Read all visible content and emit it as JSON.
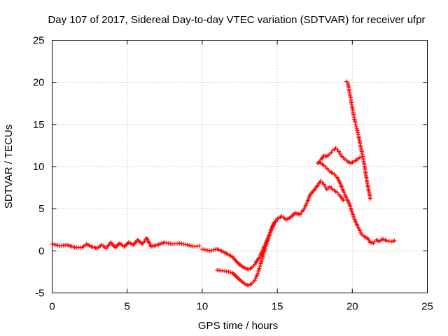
{
  "chart_data": {
    "type": "scatter",
    "title": "Day 107 of 2017, Sidereal Day-to-day VTEC variation (SDTVAR) for receiver ufpr",
    "xlabel": "GPS time / hours",
    "ylabel": "SDTVAR / TECUs",
    "xlim": [
      0,
      25
    ],
    "ylim": [
      -5,
      25
    ],
    "xticks": [
      "0",
      "5",
      "10",
      "15",
      "20",
      "25"
    ],
    "yticks": [
      "-5",
      "0",
      "5",
      "10",
      "15",
      "20",
      "25"
    ],
    "grid": true,
    "legend": "none",
    "marker": "plus",
    "color": "#ff0000",
    "series": [
      {
        "x": [
          0.0,
          0.5,
          1.0,
          1.5,
          2.0,
          2.3,
          2.6,
          3.0,
          3.3,
          3.6,
          3.9,
          4.2,
          4.5,
          4.8,
          5.1,
          5.4,
          5.7,
          6.0,
          6.3,
          6.6,
          7.0,
          7.5,
          8.0,
          8.5,
          9.0,
          9.5,
          9.8
        ],
        "y": [
          0.8,
          0.6,
          0.7,
          0.4,
          0.4,
          0.8,
          0.5,
          0.3,
          0.7,
          0.3,
          1.0,
          0.4,
          0.9,
          0.5,
          1.0,
          0.7,
          1.3,
          0.8,
          1.5,
          0.5,
          0.7,
          1.0,
          0.8,
          0.9,
          0.7,
          0.5,
          0.6
        ]
      },
      {
        "x": [
          10.0,
          10.5,
          11.0,
          11.5,
          12.0,
          12.3,
          12.6,
          12.9,
          13.1,
          13.3,
          13.5,
          13.8,
          14.0,
          14.2,
          14.4,
          14.6,
          14.8,
          15.0
        ],
        "y": [
          0.2,
          0.0,
          0.2,
          -0.2,
          -0.7,
          -1.3,
          -1.8,
          -2.1,
          -2.2,
          -2.0,
          -1.6,
          -0.8,
          0.0,
          0.8,
          1.6,
          2.6,
          3.4,
          3.8
        ]
      },
      {
        "x": [
          11.0,
          11.5,
          12.0,
          12.3,
          12.6,
          12.9,
          13.1,
          13.3,
          13.5,
          13.7,
          13.9,
          14.1,
          14.3,
          14.5,
          14.7,
          14.9
        ],
        "y": [
          -2.3,
          -2.4,
          -2.6,
          -3.1,
          -3.6,
          -4.0,
          -4.1,
          -3.9,
          -3.5,
          -2.7,
          -1.5,
          -0.3,
          0.9,
          2.0,
          2.9,
          3.5
        ]
      },
      {
        "x": [
          15.0,
          15.3,
          15.6,
          15.9,
          16.2,
          16.5,
          16.8,
          17.0,
          17.2,
          17.5,
          17.7,
          17.9,
          18.1,
          18.3,
          18.5,
          18.7,
          19.0,
          19.2,
          19.4
        ],
        "y": [
          3.8,
          4.1,
          3.7,
          4.0,
          4.5,
          4.3,
          5.0,
          5.8,
          6.7,
          7.3,
          7.8,
          8.3,
          7.9,
          7.3,
          7.6,
          7.3,
          6.9,
          6.5,
          6.0
        ]
      },
      {
        "x": [
          17.8,
          18.0,
          18.2,
          18.4,
          18.6,
          18.8,
          19.0,
          19.2,
          19.4,
          19.6,
          19.8,
          20.0,
          20.2,
          20.4,
          20.6,
          20.8,
          21.0,
          21.2,
          21.4,
          21.6,
          21.8,
          22.0,
          22.3,
          22.6,
          22.8
        ],
        "y": [
          10.5,
          10.3,
          10.0,
          9.6,
          9.3,
          9.1,
          8.7,
          8.0,
          7.1,
          6.3,
          5.6,
          4.5,
          3.5,
          2.8,
          2.0,
          1.7,
          1.5,
          1.0,
          0.9,
          1.3,
          1.1,
          1.4,
          1.2,
          1.1,
          1.2
        ]
      },
      {
        "x": [
          17.7,
          17.9,
          18.1,
          18.3,
          18.5,
          18.7,
          18.9,
          19.1,
          19.3,
          19.5,
          19.7,
          19.9,
          20.1,
          20.3,
          20.5
        ],
        "y": [
          10.4,
          10.8,
          11.3,
          11.2,
          11.5,
          11.9,
          12.2,
          11.8,
          11.2,
          10.9,
          10.6,
          10.4,
          10.6,
          10.8,
          11.1
        ]
      },
      {
        "x": [
          19.6,
          19.7,
          19.8,
          19.9,
          20.0,
          20.1,
          20.2,
          20.3,
          20.4,
          20.5,
          20.6,
          20.7,
          20.8,
          20.9,
          21.0,
          21.1,
          21.2
        ],
        "y": [
          20.1,
          19.9,
          19.0,
          18.0,
          17.0,
          16.0,
          15.2,
          14.5,
          13.8,
          12.9,
          12.0,
          11.2,
          10.2,
          9.1,
          8.0,
          7.1,
          6.2
        ]
      }
    ]
  }
}
